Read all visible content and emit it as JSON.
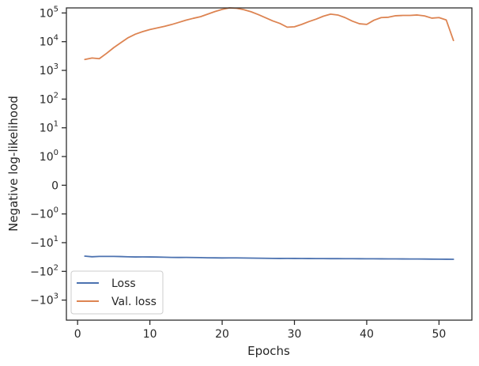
{
  "chart_data": {
    "type": "line",
    "title": "",
    "xlabel": "Epochs",
    "ylabel": "Negative log-likelihood",
    "yscale": "symlog",
    "xlim": [
      -1.55,
      54.55
    ],
    "ylim": [
      -5000,
      150000
    ],
    "legend_position": "lower-left",
    "grid": false,
    "colors": {
      "loss": "#4c72b0",
      "val_loss": "#dd8452",
      "axes": "#262626"
    },
    "x_ticks": [
      {
        "value": 0,
        "label": "0"
      },
      {
        "value": 10,
        "label": "10"
      },
      {
        "value": 20,
        "label": "20"
      },
      {
        "value": 30,
        "label": "30"
      },
      {
        "value": 40,
        "label": "40"
      },
      {
        "value": 50,
        "label": "50"
      }
    ],
    "y_ticks": [
      {
        "value": 100000,
        "base": "10",
        "exp": "5"
      },
      {
        "value": 10000,
        "base": "10",
        "exp": "4"
      },
      {
        "value": 1000,
        "base": "10",
        "exp": "3"
      },
      {
        "value": 100,
        "base": "10",
        "exp": "2"
      },
      {
        "value": 10,
        "base": "10",
        "exp": "1"
      },
      {
        "value": 1,
        "base": "10",
        "exp": "0"
      },
      {
        "value": 0,
        "base": "0",
        "exp": ""
      },
      {
        "value": -1,
        "base": "−10",
        "exp": "0"
      },
      {
        "value": -10,
        "base": "−10",
        "exp": "1"
      },
      {
        "value": -100,
        "base": "−10",
        "exp": "2"
      },
      {
        "value": -1000,
        "base": "−10",
        "exp": "3"
      }
    ],
    "series": [
      {
        "name": "Loss",
        "color": "#4c72b0",
        "x": [
          1,
          2,
          3,
          4,
          5,
          6,
          7,
          8,
          9,
          10,
          11,
          12,
          13,
          14,
          15,
          16,
          17,
          18,
          19,
          20,
          21,
          22,
          23,
          24,
          25,
          26,
          27,
          28,
          29,
          30,
          31,
          32,
          33,
          34,
          35,
          36,
          37,
          38,
          39,
          40,
          41,
          42,
          43,
          44,
          45,
          46,
          47,
          48,
          49,
          50,
          51,
          52
        ],
        "y": [
          -29.5,
          -31.0,
          -30.2,
          -30.1,
          -30.2,
          -30.5,
          -31.1,
          -31.5,
          -31.4,
          -31.5,
          -31.7,
          -32.1,
          -32.6,
          -32.8,
          -32.7,
          -32.9,
          -33.2,
          -33.6,
          -33.8,
          -34.1,
          -33.9,
          -34.0,
          -34.2,
          -34.5,
          -34.8,
          -35.0,
          -35.3,
          -35.5,
          -35.4,
          -35.5,
          -35.6,
          -35.7,
          -35.8,
          -35.9,
          -36.0,
          -36.0,
          -36.1,
          -36.2,
          -36.3,
          -36.4,
          -36.5,
          -36.6,
          -36.7,
          -36.8,
          -36.9,
          -37.0,
          -37.0,
          -37.2,
          -37.5,
          -37.7,
          -37.8,
          -38.0
        ]
      },
      {
        "name": "Val. loss",
        "color": "#dd8452",
        "x": [
          1,
          2,
          3,
          4,
          5,
          6,
          7,
          8,
          9,
          10,
          11,
          12,
          13,
          14,
          15,
          16,
          17,
          18,
          19,
          20,
          21,
          22,
          23,
          24,
          25,
          26,
          27,
          28,
          29,
          30,
          31,
          32,
          33,
          34,
          35,
          36,
          37,
          38,
          39,
          40,
          41,
          42,
          43,
          44,
          45,
          46,
          47,
          48,
          49,
          50,
          51,
          52
        ],
        "y": [
          2400,
          2700,
          2550,
          3900,
          6200,
          9300,
          13800,
          18300,
          22400,
          26500,
          30000,
          34000,
          39500,
          47000,
          56000,
          65000,
          74000,
          91000,
          112000,
          133000,
          150000,
          145000,
          130000,
          110000,
          88000,
          68000,
          53000,
          43000,
          32000,
          33000,
          40000,
          50000,
          61000,
          77000,
          91000,
          85000,
          69000,
          52000,
          42000,
          40000,
          56000,
          69000,
          71000,
          80000,
          82000,
          82000,
          85000,
          79000,
          66000,
          69000,
          57000,
          11000
        ]
      }
    ]
  }
}
